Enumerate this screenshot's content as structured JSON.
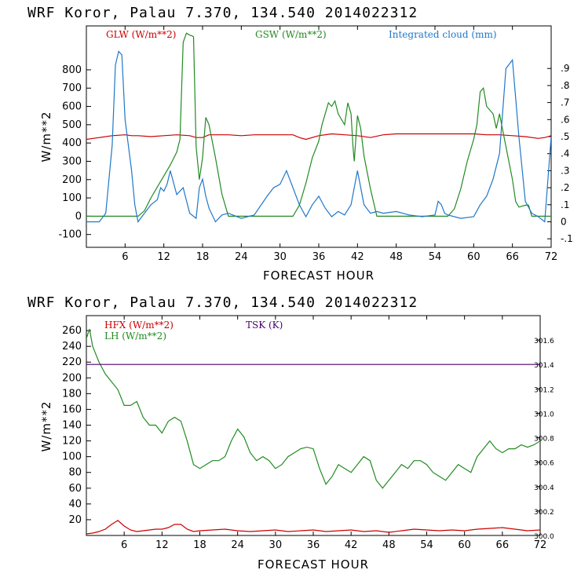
{
  "chart_data": [
    {
      "type": "line",
      "title": "WRF   Koror, Palau   7.370, 134.540  2014022312",
      "xlabel": "FORECAST HOUR",
      "ylabel": "W/m**2",
      "xlim": [
        0,
        72
      ],
      "ylim": [
        -170,
        1040
      ],
      "xticks": [
        "6",
        "12",
        "18",
        "24",
        "30",
        "36",
        "42",
        "48",
        "54",
        "60",
        "66",
        "72"
      ],
      "yticks": [
        "-100",
        "0",
        "100",
        "200",
        "300",
        "400",
        "500",
        "600",
        "700",
        "800"
      ],
      "right_axis": {
        "ylim": [
          -0.15,
          1.15
        ],
        "ticks": [
          "-.1",
          "0",
          ".1",
          ".2",
          ".3",
          ".4",
          ".5",
          ".6",
          ".7",
          ".8",
          ".9"
        ]
      },
      "legend_placement": "top",
      "series": [
        {
          "name": "GLW (W/m**2)",
          "color": "#cc0000",
          "axis": "left",
          "x": [
            0,
            2,
            4,
            6,
            7,
            8,
            10,
            12,
            14,
            16,
            17,
            18,
            19,
            20,
            22,
            24,
            26,
            28,
            30,
            32,
            33,
            34,
            36,
            38,
            40,
            42,
            44,
            46,
            48,
            50,
            52,
            54,
            56,
            58,
            60,
            62,
            64,
            66,
            68,
            70,
            71,
            72
          ],
          "y": [
            420,
            430,
            440,
            445,
            440,
            440,
            435,
            440,
            445,
            440,
            430,
            430,
            445,
            445,
            445,
            440,
            445,
            445,
            445,
            445,
            430,
            420,
            440,
            450,
            445,
            440,
            430,
            445,
            450,
            450,
            450,
            450,
            450,
            450,
            450,
            445,
            445,
            440,
            435,
            425,
            430,
            440
          ]
        },
        {
          "name": "GSW (W/m**2)",
          "color": "#228b22",
          "axis": "left",
          "x": [
            0,
            6,
            8,
            9,
            10,
            11,
            12,
            13,
            14,
            14.5,
            15,
            15.5,
            16,
            16.4,
            16.6,
            17,
            17.5,
            18,
            18.5,
            19,
            20,
            21,
            22,
            32,
            33,
            34,
            35,
            36,
            36.5,
            37,
            37.5,
            38,
            38.5,
            39,
            40,
            40.5,
            41,
            41.3,
            41.5,
            42,
            42.5,
            43,
            44,
            45,
            56,
            57,
            58,
            59,
            60,
            60.5,
            61,
            61.5,
            62,
            63,
            63.5,
            64,
            65,
            66,
            66.5,
            67,
            68,
            68.5,
            69,
            70,
            72
          ],
          "y": [
            0,
            0,
            0,
            30,
            100,
            160,
            220,
            280,
            350,
            420,
            950,
            1000,
            990,
            985,
            980,
            380,
            200,
            320,
            540,
            500,
            320,
            120,
            0,
            0,
            60,
            180,
            320,
            410,
            500,
            560,
            620,
            600,
            630,
            560,
            500,
            620,
            560,
            380,
            300,
            550,
            480,
            330,
            150,
            0,
            0,
            40,
            150,
            300,
            420,
            500,
            680,
            700,
            600,
            560,
            480,
            560,
            380,
            200,
            80,
            50,
            60,
            60,
            0,
            0,
            0
          ]
        },
        {
          "name": "Integrated cloud (mm)",
          "color": "#1f77c8",
          "axis": "right",
          "x": [
            0,
            2,
            3,
            4,
            4.5,
            5,
            5.5,
            6,
            7,
            7.5,
            8,
            9,
            10,
            11,
            11.5,
            12,
            12.5,
            13,
            14,
            15,
            16,
            17,
            17.5,
            18,
            18.5,
            19,
            20,
            21,
            22,
            24,
            26,
            28,
            29,
            30,
            31,
            32,
            33,
            34,
            35,
            36,
            37,
            38,
            39,
            40,
            41,
            42,
            43,
            44,
            45,
            46,
            48,
            50,
            52,
            54,
            54.5,
            55,
            55.5,
            56,
            58,
            60,
            61,
            62,
            63,
            64,
            65,
            66,
            67,
            68,
            69,
            70,
            71,
            72
          ],
          "y": [
            0,
            0,
            0.05,
            0.45,
            0.92,
            1.0,
            0.98,
            0.6,
            0.3,
            0.1,
            0,
            0.05,
            0.1,
            0.13,
            0.2,
            0.18,
            0.22,
            0.3,
            0.16,
            0.2,
            0.05,
            0.02,
            0.2,
            0.25,
            0.15,
            0.08,
            0,
            0.04,
            0.05,
            0.02,
            0.04,
            0.15,
            0.2,
            0.22,
            0.3,
            0.2,
            0.1,
            0.03,
            0.1,
            0.15,
            0.08,
            0.03,
            0.06,
            0.04,
            0.1,
            0.3,
            0.1,
            0.05,
            0.06,
            0.05,
            0.06,
            0.04,
            0.03,
            0.04,
            0.12,
            0.1,
            0.05,
            0.04,
            0.02,
            0.03,
            0.1,
            0.15,
            0.25,
            0.4,
            0.9,
            0.95,
            0.5,
            0.12,
            0.05,
            0.03,
            0,
            0.5
          ]
        }
      ]
    },
    {
      "type": "line",
      "title": "WRF   Koror, Palau   7.370, 134.540  2014022312",
      "xlabel": "FORECAST HOUR",
      "ylabel": "W/m**2",
      "xlim": [
        0,
        72
      ],
      "ylim": [
        0,
        279
      ],
      "xticks": [
        "6",
        "12",
        "18",
        "24",
        "30",
        "36",
        "42",
        "48",
        "54",
        "60",
        "66",
        "72"
      ],
      "yticks": [
        "20",
        "40",
        "60",
        "80",
        "100",
        "120",
        "140",
        "160",
        "180",
        "200",
        "220",
        "240",
        "260"
      ],
      "right_axis": {
        "ylim": [
          300.0,
          301.8
        ],
        "ticks": [
          "300.0",
          "300.2",
          "300.4",
          "300.6",
          "300.8",
          "301.0",
          "301.2",
          "301.4",
          "301.6"
        ]
      },
      "legend_placement": "top-left",
      "series": [
        {
          "name": "HFX (W/m**2)",
          "color": "#cc0000",
          "axis": "left",
          "x": [
            0,
            1,
            2,
            3,
            4,
            5,
            6,
            7,
            8,
            9,
            10,
            11,
            12,
            13,
            14,
            15,
            16,
            17,
            18,
            20,
            22,
            24,
            26,
            28,
            30,
            32,
            34,
            36,
            38,
            40,
            42,
            44,
            46,
            48,
            50,
            52,
            54,
            56,
            58,
            60,
            62,
            64,
            66,
            68,
            70,
            72
          ],
          "y": [
            2,
            3,
            5,
            8,
            14,
            19,
            12,
            7,
            5,
            6,
            7,
            8,
            8,
            10,
            14,
            14,
            8,
            5,
            6,
            7,
            8,
            6,
            5,
            6,
            7,
            5,
            6,
            7,
            5,
            6,
            7,
            5,
            6,
            4,
            6,
            8,
            7,
            6,
            7,
            6,
            8,
            9,
            10,
            8,
            6,
            7
          ]
        },
        {
          "name": "LH  (W/m**2)",
          "color": "#228b22",
          "axis": "left",
          "x": [
            0,
            0.5,
            1,
            2,
            3,
            4,
            5,
            6,
            7,
            8,
            9,
            10,
            11,
            12,
            13,
            14,
            15,
            16,
            17,
            18,
            19,
            20,
            21,
            22,
            23,
            24,
            25,
            26,
            27,
            28,
            29,
            30,
            31,
            32,
            33,
            34,
            35,
            36,
            37,
            38,
            39,
            40,
            41,
            42,
            43,
            44,
            45,
            46,
            47,
            48,
            49,
            50,
            51,
            52,
            53,
            54,
            55,
            56,
            57,
            58,
            59,
            60,
            61,
            62,
            63,
            64,
            65,
            66,
            67,
            68,
            69,
            70,
            71,
            72
          ],
          "y": [
            250,
            262,
            240,
            220,
            205,
            195,
            185,
            165,
            165,
            170,
            150,
            140,
            140,
            130,
            145,
            150,
            145,
            120,
            90,
            85,
            90,
            95,
            95,
            100,
            120,
            135,
            125,
            105,
            95,
            100,
            95,
            85,
            90,
            100,
            105,
            110,
            112,
            110,
            85,
            65,
            75,
            90,
            85,
            80,
            90,
            100,
            95,
            70,
            60,
            70,
            80,
            90,
            85,
            95,
            95,
            90,
            80,
            75,
            70,
            80,
            90,
            85,
            80,
            100,
            110,
            120,
            110,
            105,
            110,
            110,
            115,
            112,
            115,
            120
          ]
        },
        {
          "name": "TSK (K)",
          "color": "#4b006e",
          "axis": "right",
          "x": [
            0,
            72
          ],
          "y": [
            301.4,
            301.4
          ]
        }
      ]
    }
  ]
}
